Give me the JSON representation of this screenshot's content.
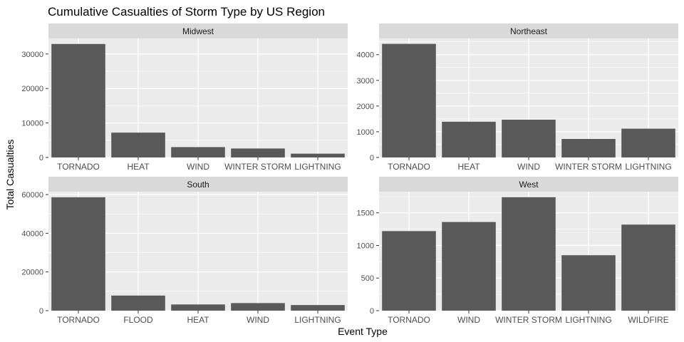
{
  "title": "Cumulative Casualties of Storm Type by US Region",
  "xlabel": "Event Type",
  "ylabel": "Total Casualties",
  "colors": {
    "panel_bg": "#ebebeb",
    "strip_bg": "#d9d9d9",
    "bar": "#595959",
    "grid": "#ffffff",
    "text": "#4d4d4d",
    "title": "#000000"
  },
  "chart_data": [
    {
      "type": "bar",
      "facet": "Midwest",
      "categories": [
        "TORNADO",
        "HEAT",
        "WIND",
        "WINTER STORM",
        "LIGHTNING"
      ],
      "values": [
        32900,
        7200,
        3000,
        2600,
        1100
      ],
      "ylim": [
        0,
        34500
      ],
      "yticks": [
        0,
        10000,
        20000,
        30000
      ],
      "ytick_labels": [
        "0",
        "10000",
        "20000",
        "30000"
      ]
    },
    {
      "type": "bar",
      "facet": "Northeast",
      "categories": [
        "TORNADO",
        "HEAT",
        "WIND",
        "WINTER STORM",
        "LIGHTNING"
      ],
      "values": [
        4420,
        1390,
        1470,
        720,
        1120
      ],
      "ylim": [
        0,
        4630
      ],
      "yticks": [
        0,
        1000,
        2000,
        3000,
        4000
      ],
      "ytick_labels": [
        "0",
        "1000",
        "2000",
        "3000",
        "4000"
      ]
    },
    {
      "type": "bar",
      "facet": "South",
      "categories": [
        "TORNADO",
        "FLOOD",
        "HEAT",
        "WIND",
        "LIGHTNING"
      ],
      "values": [
        58600,
        7800,
        3200,
        3900,
        2900
      ],
      "ylim": [
        0,
        61500
      ],
      "yticks": [
        0,
        20000,
        40000,
        60000
      ],
      "ytick_labels": [
        "0",
        "20000",
        "40000",
        "60000"
      ]
    },
    {
      "type": "bar",
      "facet": "West",
      "categories": [
        "TORNADO",
        "WIND",
        "WINTER STORM",
        "LIGHTNING",
        "WILDFIRE"
      ],
      "values": [
        1220,
        1360,
        1740,
        850,
        1320
      ],
      "ylim": [
        0,
        1825
      ],
      "yticks": [
        0,
        500,
        1000,
        1500
      ],
      "ytick_labels": [
        "0",
        "500",
        "1000",
        "1500"
      ]
    }
  ]
}
